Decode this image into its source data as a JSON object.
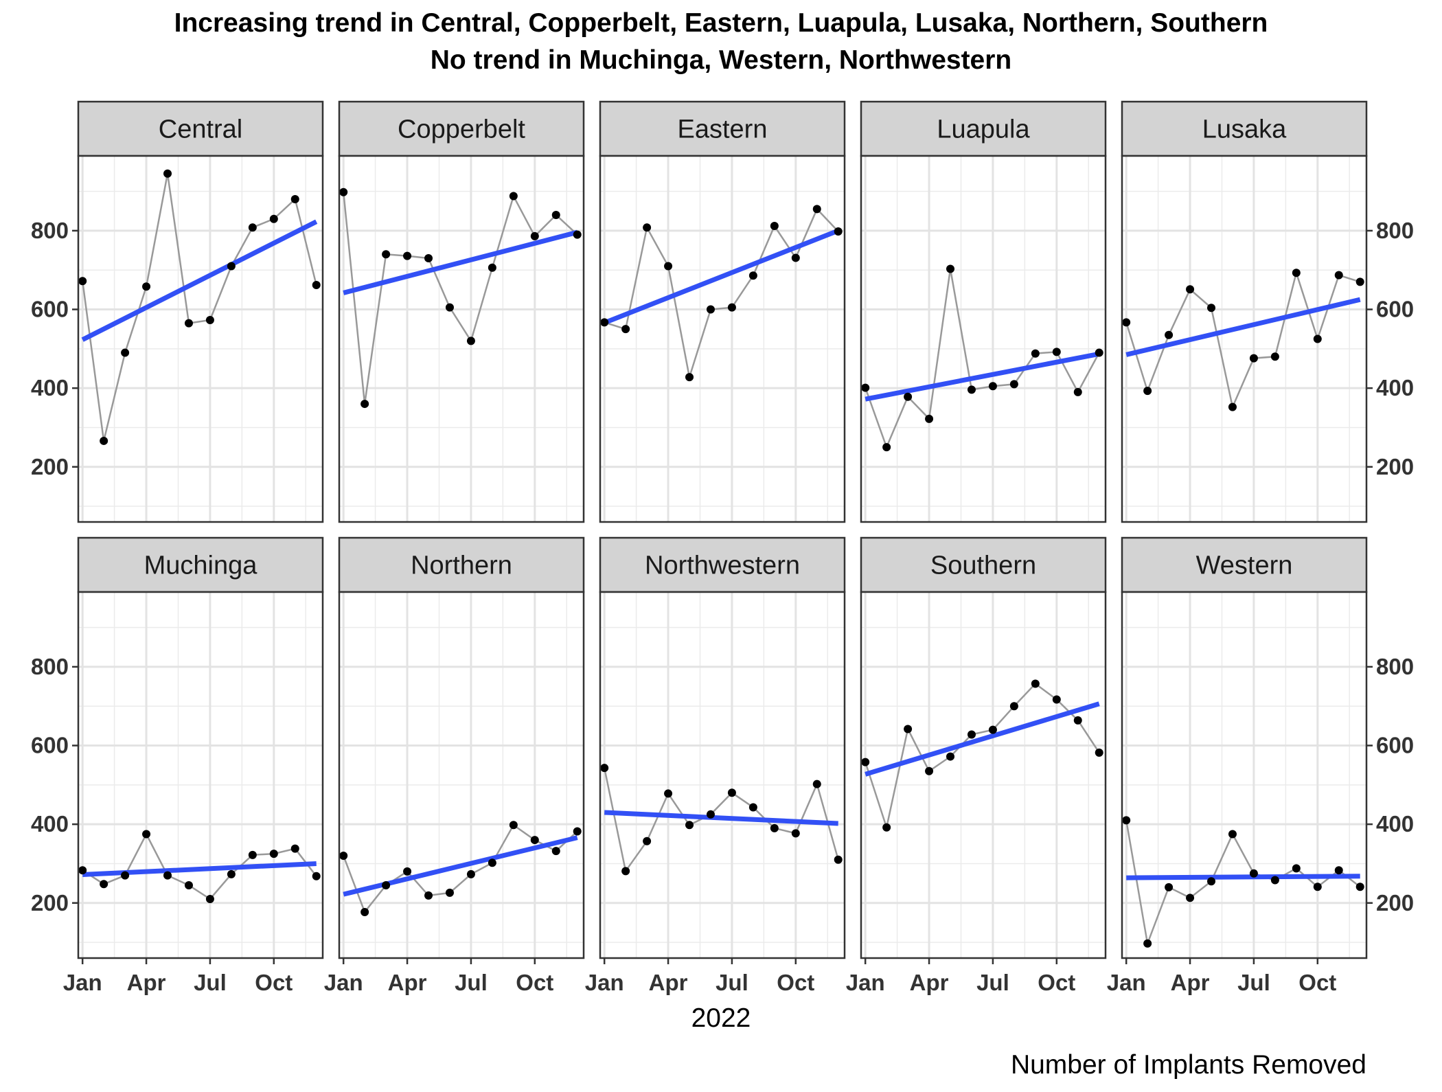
{
  "chart_data": {
    "type": "line",
    "title": "Increasing trend in Central, Copperbelt, Eastern, Luapula, Lusaka, Northern, Southern",
    "subtitle": "No trend in Muchinga, Western, Northwestern",
    "xlabel": "2022",
    "ylabel": "Number of Implants Removed",
    "x_tick_labels": [
      "Jan",
      "Apr",
      "Jul",
      "Oct"
    ],
    "y_ticks": [
      200,
      400,
      600,
      800
    ],
    "ylim": [
      60,
      990
    ],
    "x": [
      "Jan",
      "Feb",
      "Mar",
      "Apr",
      "May",
      "Jun",
      "Jul",
      "Aug",
      "Sep",
      "Oct",
      "Nov",
      "Dec"
    ],
    "grid": true,
    "colors": {
      "line": "#999999",
      "point": "#000000",
      "trend": "#3250f5",
      "strip": "#d3d3d3"
    },
    "panels": [
      {
        "name": "Central",
        "values": [
          672,
          266,
          490,
          658,
          945,
          565,
          573,
          710,
          808,
          830,
          880,
          662
        ],
        "trend": [
          523,
          823
        ]
      },
      {
        "name": "Copperbelt",
        "values": [
          898,
          360,
          740,
          736,
          730,
          605,
          520,
          706,
          888,
          786,
          840,
          790
        ],
        "trend": [
          642,
          796
        ]
      },
      {
        "name": "Eastern",
        "values": [
          567,
          550,
          808,
          710,
          428,
          600,
          605,
          686,
          812,
          731,
          855,
          798
        ],
        "trend": [
          566,
          800
        ]
      },
      {
        "name": "Luapula",
        "values": [
          401,
          250,
          378,
          322,
          703,
          396,
          405,
          410,
          488,
          492,
          390,
          490
        ],
        "trend": [
          372,
          487
        ]
      },
      {
        "name": "Lusaka",
        "values": [
          567,
          393,
          535,
          651,
          604,
          352,
          476,
          480,
          693,
          525,
          687,
          670
        ],
        "trend": [
          485,
          625
        ]
      },
      {
        "name": "Muchinga",
        "values": [
          283,
          248,
          270,
          375,
          270,
          245,
          210,
          273,
          322,
          325,
          338,
          268
        ],
        "trend": [
          272,
          300
        ]
      },
      {
        "name": "Northern",
        "values": [
          320,
          177,
          245,
          280,
          219,
          226,
          273,
          302,
          398,
          360,
          332,
          382
        ],
        "trend": [
          222,
          366
        ]
      },
      {
        "name": "Northwestern",
        "values": [
          543,
          281,
          357,
          478,
          398,
          425,
          480,
          443,
          390,
          377,
          502,
          310
        ],
        "trend": [
          430,
          402
        ]
      },
      {
        "name": "Southern",
        "values": [
          558,
          392,
          642,
          535,
          572,
          628,
          640,
          700,
          757,
          717,
          664,
          582
        ],
        "trend": [
          527,
          706
        ]
      },
      {
        "name": "Western",
        "values": [
          410,
          97,
          240,
          213,
          255,
          375,
          275,
          258,
          288,
          241,
          283,
          241
        ],
        "trend": [
          264,
          268
        ]
      }
    ]
  }
}
